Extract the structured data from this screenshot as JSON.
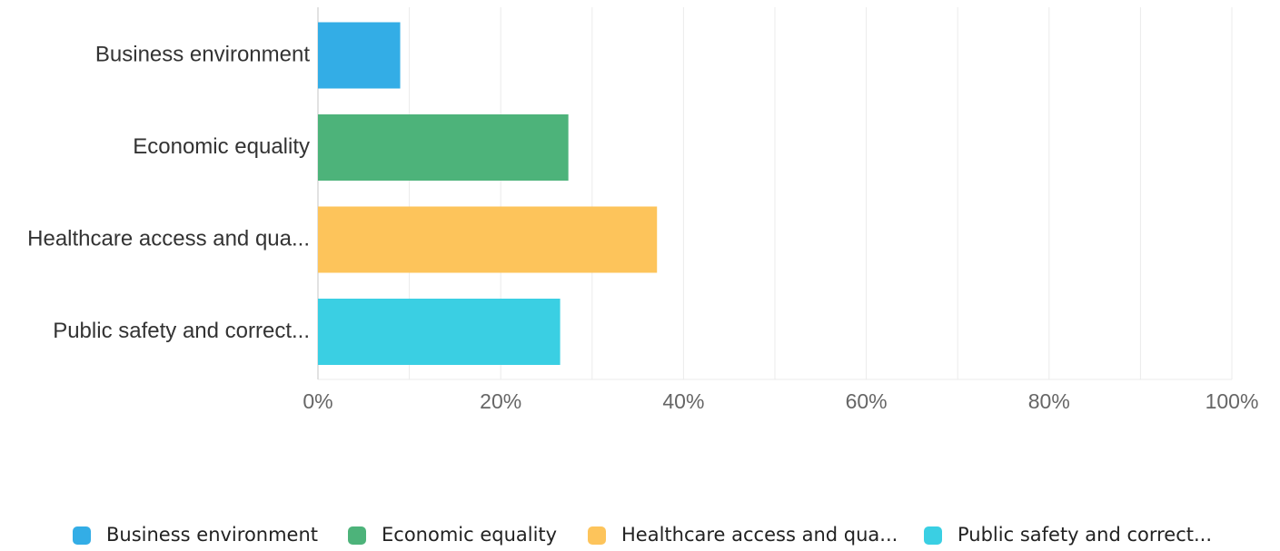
{
  "chart_data": {
    "type": "bar",
    "orientation": "horizontal",
    "categories": [
      "Business environment",
      "Economic equality",
      "Healthcare access and qua...",
      "Public safety and correct..."
    ],
    "values": [
      9,
      27.4,
      37.1,
      26.5
    ],
    "unit": "%",
    "xlim": [
      0,
      100
    ],
    "xticks": [
      "0%",
      "20%",
      "40%",
      "60%",
      "80%",
      "100%"
    ],
    "grid": "vertical",
    "legend_position": "bottom",
    "legend": [
      "Business environment",
      "Economic equality",
      "Healthcare access and qua...",
      "Public safety and correct..."
    ],
    "colors": [
      "#33ADE6",
      "#4DB37A",
      "#FDC45B",
      "#3ACFE3"
    ]
  }
}
